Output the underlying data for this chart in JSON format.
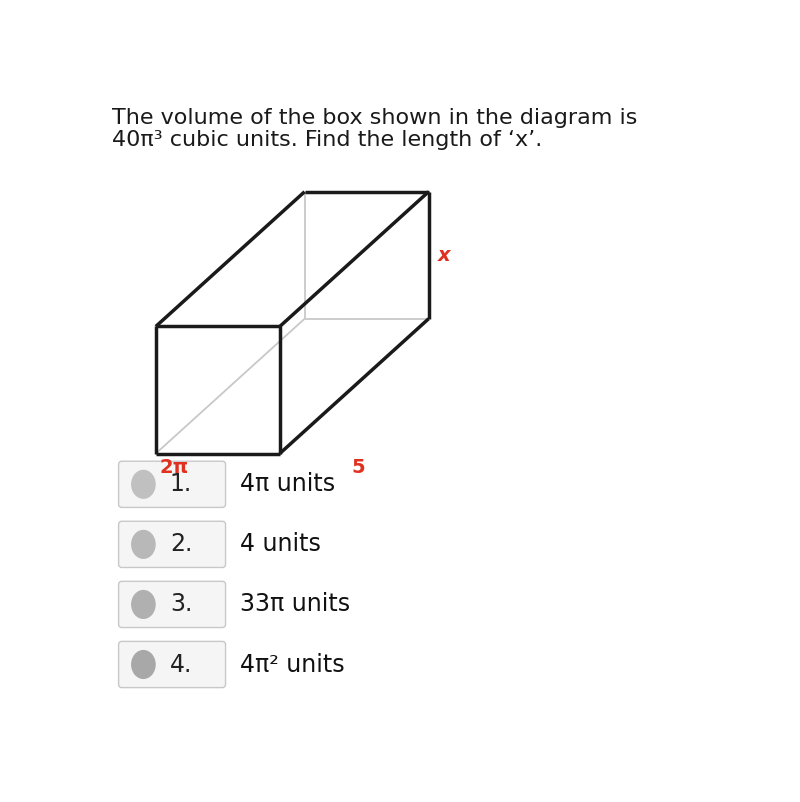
{
  "title_line1": "The volume of the box shown in the diagram is",
  "title_line2": "40π³ cubic units. Find the length of ‘x’.",
  "bg_color": "#ffffff",
  "box_color": "#1a1a1a",
  "hidden_line_color": "#c8c8c8",
  "label_x_text": "x",
  "label_x_color": "#e03020",
  "label_5_text": "5",
  "label_5_color": "#e03020",
  "label_2pi_text": "2π",
  "label_2pi_color": "#e03020",
  "options": [
    {
      "num": "1.",
      "text": "4π units",
      "circle_gray": "#c0c0c0"
    },
    {
      "num": "2.",
      "text": "4 units",
      "circle_gray": "#b8b8b8"
    },
    {
      "num": "3.",
      "text": "33π units",
      "circle_gray": "#b0b0b0"
    },
    {
      "num": "4.",
      "text": "4π² units",
      "circle_gray": "#a8a8a8"
    }
  ],
  "title_fontsize": 16,
  "option_fontsize": 17,
  "num_fontsize": 17
}
